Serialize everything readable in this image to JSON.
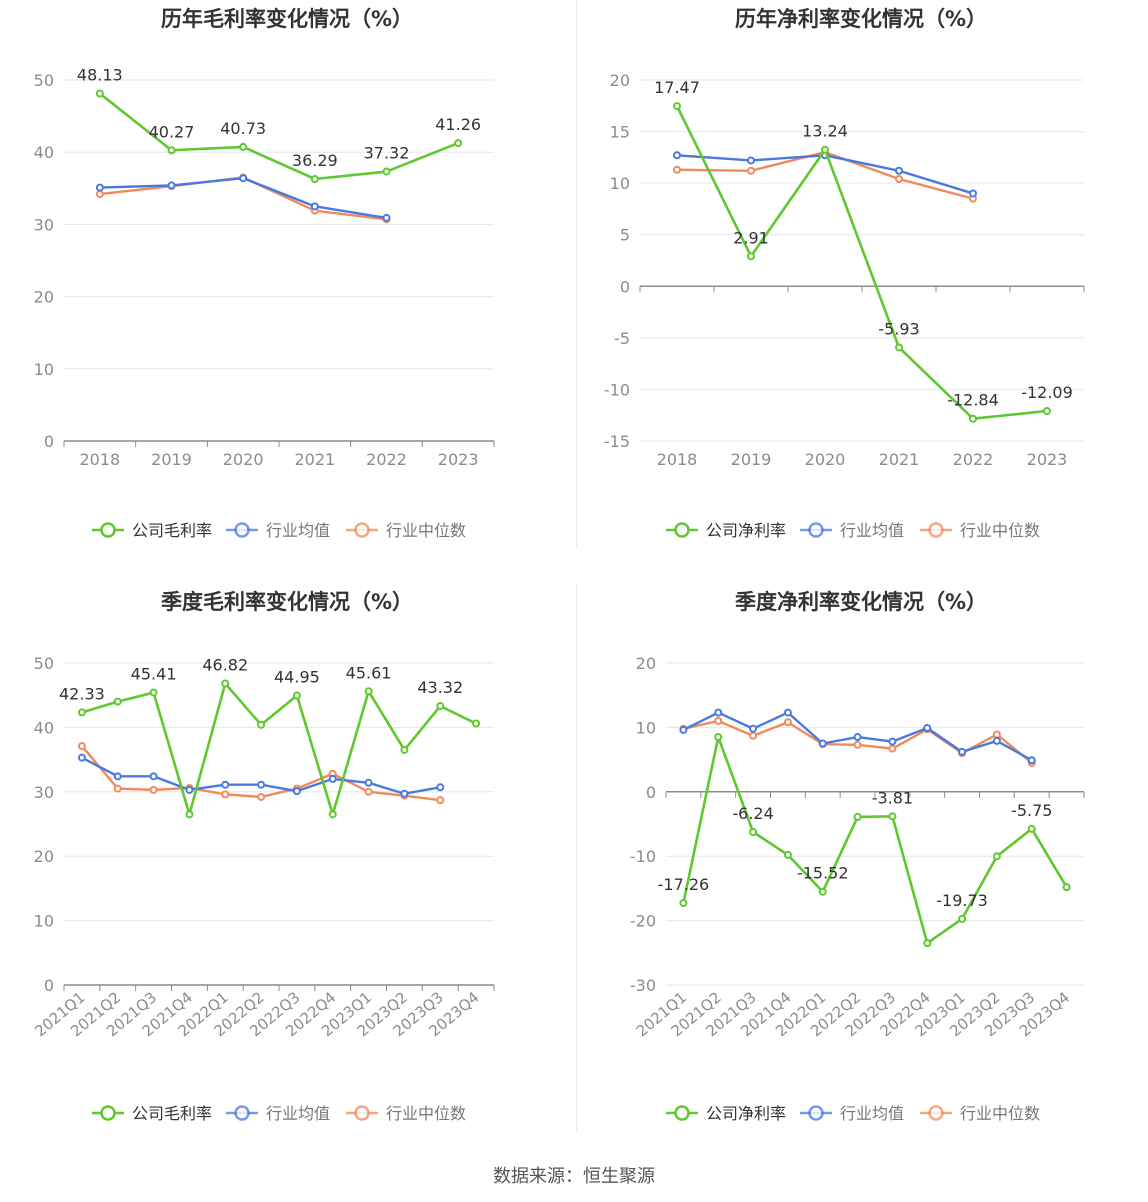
{
  "colors": {
    "company": "#5ec82e",
    "avg": "#4979e0",
    "median": "#f08a5d",
    "grid": "#e3e6ef",
    "axis": "#8c8c8c",
    "tick": "#8c8c8c",
    "label": "#333333",
    "title": "#333333"
  },
  "source": "数据来源：恒生聚源",
  "chart_data": [
    {
      "type": "line",
      "title": "历年毛利率变化情况（%）",
      "categories": [
        "2018",
        "2019",
        "2020",
        "2021",
        "2022",
        "2023"
      ],
      "ylim": [
        0,
        50
      ],
      "yticks": [
        0,
        10,
        20,
        30,
        40,
        50
      ],
      "grid": true,
      "legend_position": "bottom",
      "series": [
        {
          "name": "公司毛利率",
          "key": "company",
          "values": [
            48.13,
            40.27,
            40.73,
            36.29,
            37.32,
            41.26
          ],
          "labels": [
            "48.13",
            "40.27",
            "40.73",
            "36.29",
            "37.32",
            "41.26"
          ]
        },
        {
          "name": "行业均值",
          "key": "avg",
          "values": [
            35.1,
            35.4,
            36.4,
            32.5,
            30.9,
            null
          ]
        },
        {
          "name": "行业中位数",
          "key": "median",
          "values": [
            34.2,
            35.3,
            36.5,
            31.9,
            30.7,
            null
          ]
        }
      ]
    },
    {
      "type": "line",
      "title": "历年净利率变化情况（%）",
      "categories": [
        "2018",
        "2019",
        "2020",
        "2021",
        "2022",
        "2023"
      ],
      "ylim": [
        -15,
        20
      ],
      "yticks": [
        -15,
        -10,
        -5,
        0,
        5,
        10,
        15,
        20
      ],
      "grid": true,
      "legend_position": "bottom",
      "series": [
        {
          "name": "公司净利率",
          "key": "company",
          "values": [
            17.47,
            2.91,
            13.24,
            -5.93,
            -12.84,
            -12.09
          ],
          "labels": [
            "17.47",
            "2.91",
            "13.24",
            "-5.93",
            "-12.84",
            "-12.09"
          ]
        },
        {
          "name": "行业均值",
          "key": "avg",
          "values": [
            12.7,
            12.2,
            12.7,
            11.2,
            9.0,
            null
          ]
        },
        {
          "name": "行业中位数",
          "key": "median",
          "values": [
            11.3,
            11.2,
            13.0,
            10.4,
            8.5,
            null
          ]
        }
      ]
    },
    {
      "type": "line",
      "title": "季度毛利率变化情况（%）",
      "categories": [
        "2021Q1",
        "2021Q2",
        "2021Q3",
        "2021Q4",
        "2022Q1",
        "2022Q2",
        "2022Q3",
        "2022Q4",
        "2023Q1",
        "2023Q2",
        "2023Q3",
        "2023Q4"
      ],
      "ylim": [
        0,
        50
      ],
      "yticks": [
        0,
        10,
        20,
        30,
        40,
        50
      ],
      "grid": true,
      "legend_position": "bottom",
      "series": [
        {
          "name": "公司毛利率",
          "key": "company",
          "values": [
            42.33,
            44.0,
            45.41,
            26.5,
            46.82,
            40.4,
            44.95,
            26.5,
            45.61,
            36.5,
            43.32,
            40.6
          ],
          "labels": [
            "42.33",
            "",
            "45.41",
            "",
            "46.82",
            "",
            "44.95",
            "",
            "45.61",
            "",
            "43.32",
            ""
          ]
        },
        {
          "name": "行业均值",
          "key": "avg",
          "values": [
            35.3,
            32.4,
            32.4,
            30.3,
            31.1,
            31.1,
            30.1,
            32.0,
            31.4,
            29.7,
            30.7,
            null
          ]
        },
        {
          "name": "行业中位数",
          "key": "median",
          "values": [
            37.1,
            30.5,
            30.3,
            30.6,
            29.6,
            29.2,
            30.5,
            32.8,
            30.0,
            29.4,
            28.7,
            null
          ]
        }
      ]
    },
    {
      "type": "line",
      "title": "季度净利率变化情况（%）",
      "categories": [
        "2021Q1",
        "2021Q2",
        "2021Q3",
        "2021Q4",
        "2022Q1",
        "2022Q2",
        "2022Q3",
        "2022Q4",
        "2023Q1",
        "2023Q2",
        "2023Q3",
        "2023Q4"
      ],
      "ylim": [
        -30,
        20
      ],
      "yticks": [
        -30,
        -20,
        -10,
        0,
        10,
        20
      ],
      "grid": true,
      "legend_position": "bottom",
      "series": [
        {
          "name": "公司净利率",
          "key": "company",
          "values": [
            -17.26,
            8.5,
            -6.24,
            -9.8,
            -15.52,
            -3.9,
            -3.81,
            -23.5,
            -19.73,
            -10.0,
            -5.75,
            -14.8
          ],
          "labels": [
            "-17.26",
            "",
            "-6.24",
            "",
            "-15.52",
            "",
            "-3.81",
            "",
            "-19.73",
            "",
            "-5.75",
            ""
          ]
        },
        {
          "name": "行业均值",
          "key": "avg",
          "values": [
            9.6,
            12.3,
            9.8,
            12.3,
            7.5,
            8.5,
            7.8,
            9.9,
            6.2,
            7.9,
            4.9,
            null
          ]
        },
        {
          "name": "行业中位数",
          "key": "median",
          "values": [
            9.8,
            11.0,
            8.7,
            10.8,
            7.4,
            7.3,
            6.7,
            9.7,
            6.0,
            8.9,
            4.5,
            null
          ]
        }
      ]
    }
  ]
}
